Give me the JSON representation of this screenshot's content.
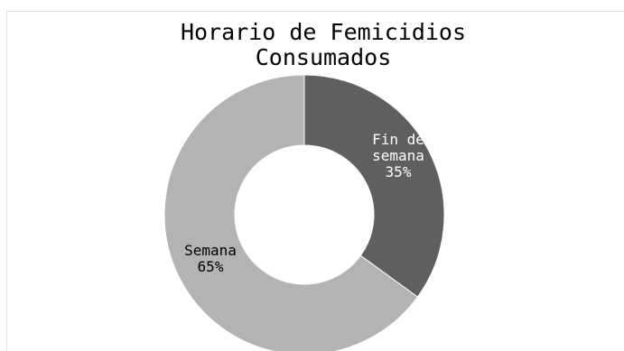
{
  "chart_data": {
    "type": "pie",
    "variant": "doughnut",
    "title_lines": [
      "Horario de Femicidios",
      "Consumados"
    ],
    "slices": [
      {
        "label_lines": [
          "Fin de",
          "semana"
        ],
        "percent_label": "35%",
        "value": 35,
        "color": "#5f5f5f",
        "label_color": "#ffffff"
      },
      {
        "label_lines": [
          "Semana"
        ],
        "percent_label": "65%",
        "value": 65,
        "color": "#b3b3b3",
        "label_color": "#000000"
      }
    ],
    "start_angle_deg": 0,
    "direction": "clockwise",
    "legend": "none"
  },
  "colors": {
    "background": "#ffffff",
    "slice_border": "#ffffff"
  }
}
